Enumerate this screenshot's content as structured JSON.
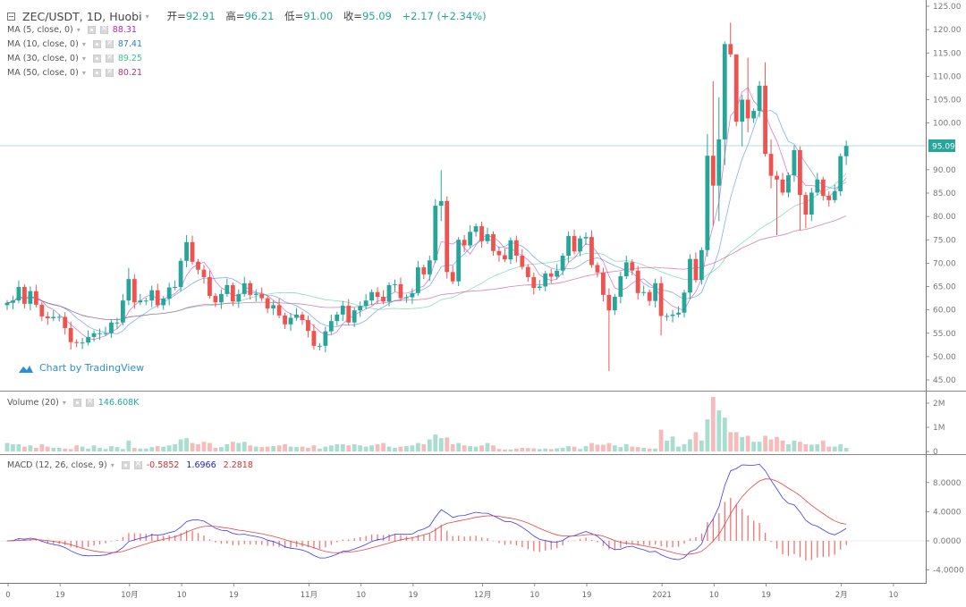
{
  "header": {
    "symbol": "ZEC/USDT, 1D, Huobi",
    "open_label": "开=",
    "open": "92.91",
    "high_label": "高=",
    "high": "96.21",
    "low_label": "低=",
    "low": "91.00",
    "close_label": "收=",
    "close": "95.09",
    "change": "+2.17 (+2.34%)"
  },
  "indicators": [
    {
      "label": "MA (5, close, 0)",
      "value": "88.31",
      "color": "#c026b0",
      "period": 5
    },
    {
      "label": "MA (10, close, 0)",
      "value": "87.41",
      "color": "#2a7ae2",
      "period": 10
    },
    {
      "label": "MA (30, close, 0)",
      "value": "89.25",
      "color": "#3cc48a",
      "period": 30
    },
    {
      "label": "MA (50, close, 0)",
      "value": "80.21",
      "color": "#b5307a",
      "period": 50
    }
  ],
  "volume_legend": {
    "label": "Volume (20)",
    "value": "146.608K"
  },
  "macd_legend": {
    "label": "MACD (12, 26, close, 9)",
    "hist": "-0.5852",
    "macd": "1.6966",
    "signal": "2.2818"
  },
  "watermark": "Chart by TradingView",
  "colors": {
    "up": "#26a69a",
    "down": "#ef5350",
    "vol_up": "#a8ddd0",
    "vol_down": "#f6bcbc",
    "macd": "#3b3bef",
    "signal": "#e94040",
    "last_price": "#26a69a"
  },
  "chart_data": {
    "type": "candlestick",
    "title": "ZEC/USDT, 1D, Huobi",
    "last_price_label": "95.09",
    "price_axis": {
      "ylim": [
        45,
        125
      ],
      "ticks": [
        "125.00",
        "120.00",
        "115.00",
        "110.00",
        "105.00",
        "100.00",
        "90.00",
        "85.00",
        "80.00",
        "75.00",
        "70.00",
        "65.00",
        "60.00",
        "55.00",
        "50.00",
        "45.00"
      ]
    },
    "volume_axis": {
      "ylim": [
        0,
        2.3
      ],
      "unit": "M",
      "ticks": [
        "2M",
        "1M",
        "0"
      ]
    },
    "macd_axis": {
      "ylim": [
        -5.5,
        10.5
      ],
      "ticks": [
        "8.0000",
        "4.0000",
        "0.0000",
        "-4.0000"
      ]
    },
    "x_ticks": [
      {
        "label": "0",
        "day": 0
      },
      {
        "label": "19",
        "day": 9
      },
      {
        "label": "10月",
        "day": 21
      },
      {
        "label": "10",
        "day": 30
      },
      {
        "label": "19",
        "day": 39
      },
      {
        "label": "11月",
        "day": 52
      },
      {
        "label": "10",
        "day": 61
      },
      {
        "label": "19",
        "day": 70
      },
      {
        "label": "12月",
        "day": 82
      },
      {
        "label": "10",
        "day": 91
      },
      {
        "label": "19",
        "day": 100
      },
      {
        "label": "2021",
        "day": 113
      },
      {
        "label": "10",
        "day": 122
      },
      {
        "label": "19",
        "day": 131
      },
      {
        "label": "2月",
        "day": 144
      },
      {
        "label": "10",
        "day": 153
      }
    ],
    "first_open": 61.0,
    "close": [
      61.5,
      62,
      64.9,
      61.3,
      64,
      61.1,
      58.6,
      58.2,
      58.5,
      58.5,
      56.1,
      53.1,
      53,
      53,
      54.2,
      55,
      55,
      55,
      57.3,
      57.3,
      62,
      66.6,
      61.6,
      62,
      62,
      64.2,
      61,
      62.4,
      64.8,
      64.9,
      70.5,
      74.5,
      70.3,
      68.6,
      67,
      63,
      61.6,
      63.4,
      65.3,
      61.8,
      63.4,
      65.7,
      63.2,
      63.4,
      62.5,
      60.3,
      61,
      58.8,
      56.9,
      58.3,
      59,
      57.8,
      55.5,
      52.3,
      52.3,
      55.4,
      57.6,
      59,
      60.9,
      57.3,
      59.9,
      60.8,
      62,
      63.8,
      62.8,
      61.8,
      65.3,
      65.5,
      62.5,
      62.7,
      63.6,
      69.1,
      67.6,
      70.6,
      82.3,
      83.3,
      68.1,
      66.1,
      75,
      73.8,
      76.7,
      77.9,
      74.7,
      76.2,
      72.6,
      71.7,
      70.8,
      74.9,
      71.6,
      69.2,
      67,
      64.7,
      65,
      67.8,
      67.1,
      68.4,
      71.6,
      75.8,
      72.5,
      75.3,
      75.6,
      69.6,
      68,
      63.2,
      59.9,
      62.8,
      67.2,
      70.2,
      68.4,
      63.6,
      63.8,
      61.9,
      65.7,
      58.7,
      58.7,
      59,
      59.4,
      63.7,
      70.9,
      66.4,
      72.8,
      93,
      86.6,
      96.5,
      116.9,
      114.7,
      100.3,
      105,
      101,
      102.6,
      108,
      93.4,
      88.7,
      87.9,
      85.1,
      88.8,
      94.2,
      84.6,
      80.4,
      85.1,
      87.9,
      84.4,
      83.5,
      85.4,
      92.9,
      95.09
    ],
    "wick_overrides": {
      "11": {
        "low": 51.5
      },
      "21": {
        "high": 69
      },
      "31": {
        "high": 76
      },
      "53": {
        "low": 51.5
      },
      "75": {
        "high": 89.9,
        "low": 79
      },
      "104": {
        "low": 46.9
      },
      "113": {
        "low": 54.5
      },
      "121": {
        "high": 97.6
      },
      "122": {
        "high": 109,
        "low": 78
      },
      "123": {
        "high": 105.5,
        "low": 79
      },
      "124": {
        "high": 117.5,
        "low": 91
      },
      "125": {
        "high": 121.5
      },
      "126": {
        "high": 110
      },
      "127": {
        "low": 95
      },
      "128": {
        "high": 114,
        "low": 98
      },
      "131": {
        "high": 113
      },
      "132": {
        "high": 96.5,
        "low": 86
      },
      "133": {
        "low": 76
      },
      "137": {
        "high": 95,
        "low": 77
      },
      "138": {
        "low": 77.5
      },
      "144": {
        "high": 93.5
      },
      "145": {
        "high": 96.21,
        "low": 91.0
      }
    },
    "volume_millions": [
      0.35,
      0.3,
      0.3,
      0.2,
      0.25,
      0.15,
      0.3,
      0.2,
      0.15,
      0.15,
      0.12,
      0.1,
      0.25,
      0.2,
      0.12,
      0.25,
      0.15,
      0.1,
      0.22,
      0.18,
      0.1,
      0.45,
      0.15,
      0.12,
      0.12,
      0.18,
      0.22,
      0.2,
      0.25,
      0.3,
      0.5,
      0.55,
      0.35,
      0.3,
      0.4,
      0.35,
      0.15,
      0.18,
      0.3,
      0.4,
      0.35,
      0.4,
      0.25,
      0.2,
      0.18,
      0.2,
      0.22,
      0.25,
      0.3,
      0.2,
      0.18,
      0.2,
      0.15,
      0.25,
      0.12,
      0.2,
      0.25,
      0.3,
      0.3,
      0.25,
      0.3,
      0.25,
      0.2,
      0.25,
      0.3,
      0.35,
      0.2,
      0.15,
      0.2,
      0.22,
      0.25,
      0.35,
      0.3,
      0.5,
      0.7,
      0.55,
      0.58,
      0.3,
      0.35,
      0.25,
      0.22,
      0.2,
      0.25,
      0.35,
      0.25,
      0.1,
      0.08,
      0.08,
      0.12,
      0.15,
      0.14,
      0.13,
      0.1,
      0.12,
      0.1,
      0.13,
      0.15,
      0.22,
      0.2,
      0.1,
      0.22,
      0.35,
      0.28,
      0.28,
      0.35,
      0.25,
      0.18,
      0.3,
      0.2,
      0.18,
      0.15,
      0.12,
      0.12,
      0.9,
      0.45,
      0.62,
      0.2,
      0.3,
      0.5,
      0.8,
      0.45,
      1.33,
      2.26,
      1.7,
      1.4,
      0.8,
      0.8,
      0.6,
      0.65,
      0.4,
      0.4,
      0.65,
      0.5,
      0.6,
      0.45,
      0.3,
      0.45,
      0.4,
      0.3,
      0.28,
      0.3,
      0.45,
      0.2,
      0.2,
      0.3,
      0.147
    ]
  }
}
